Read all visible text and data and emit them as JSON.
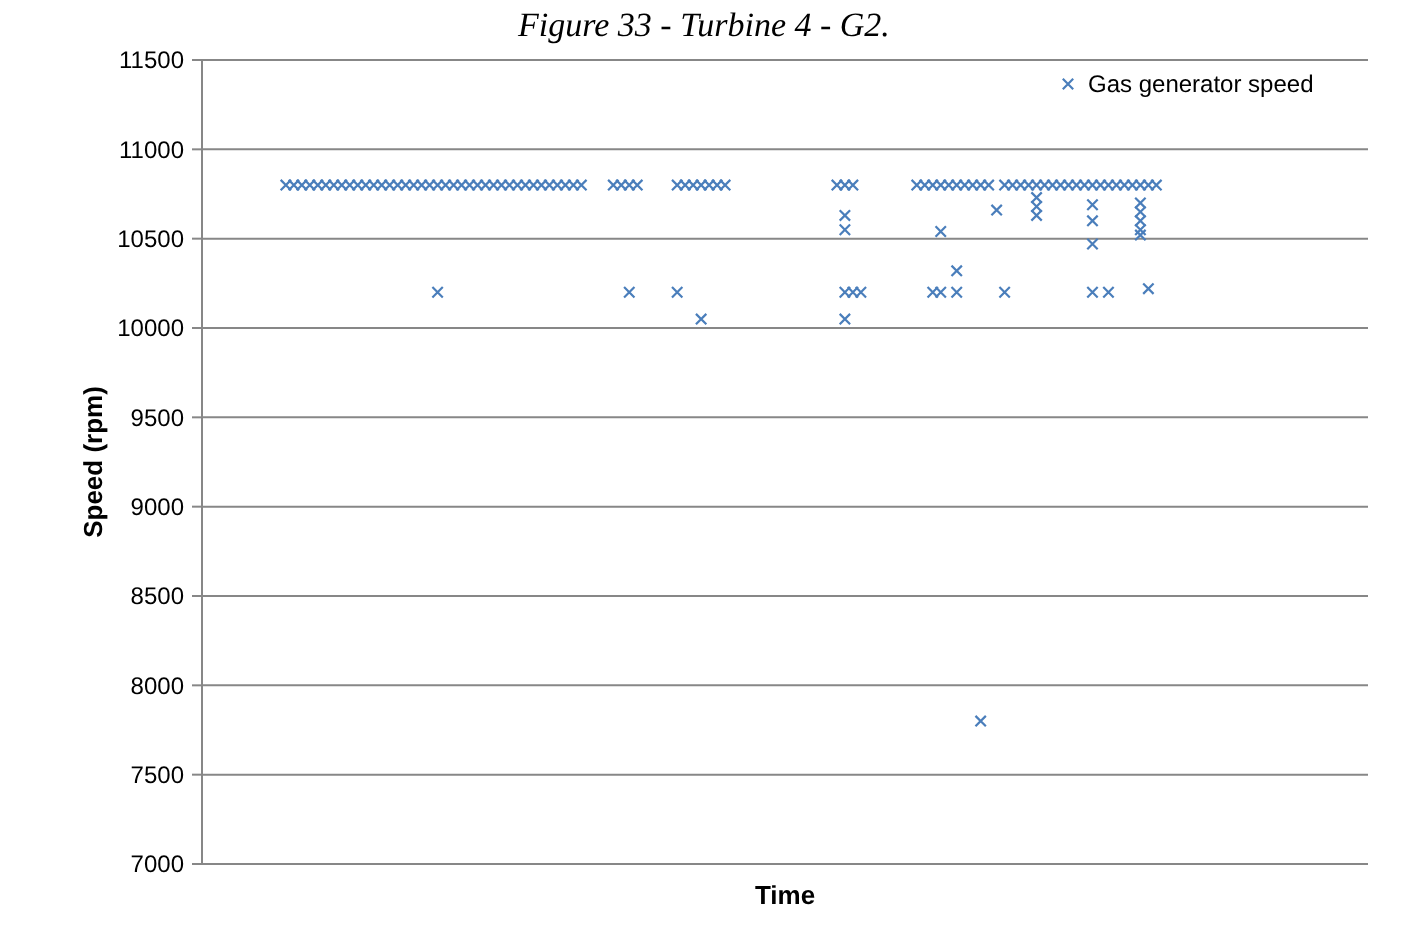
{
  "chart_data": {
    "type": "scatter",
    "title": "Figure 33 - Turbine 4 - G2.",
    "xlabel": "Time",
    "ylabel": "Speed (rpm)",
    "ylim": [
      7000,
      11500
    ],
    "yticks": [
      7000,
      7500,
      8000,
      8500,
      9000,
      9500,
      10000,
      10500,
      11000,
      11500
    ],
    "grid": "y",
    "legend": "top right",
    "tick_labels": "y",
    "marker": "cross",
    "categories": [
      null,
      null,
      null,
      null,
      null,
      null,
      null,
      null,
      null,
      null,
      null,
      null,
      null,
      null,
      null,
      null,
      null,
      null,
      null,
      null,
      null,
      null,
      null,
      null,
      null,
      null,
      null,
      null,
      null,
      null,
      null,
      null,
      null,
      null,
      null,
      null,
      null,
      null,
      null,
      null,
      null,
      null,
      null,
      null,
      null,
      null,
      null,
      null,
      null,
      null,
      null,
      null,
      null,
      null,
      null,
      null,
      null,
      null,
      null,
      null,
      null,
      null,
      null,
      null,
      null,
      null,
      null,
      null,
      null,
      null,
      null,
      null,
      null,
      null,
      null,
      null,
      null,
      null,
      null,
      null,
      null,
      null,
      null,
      null,
      null,
      null,
      null,
      null,
      null,
      null,
      null,
      null,
      null,
      null,
      null,
      null,
      null,
      null,
      null,
      null,
      null,
      null,
      null,
      null,
      null,
      null,
      null,
      null,
      null,
      null,
      null,
      null,
      null,
      null,
      null,
      null,
      null,
      null,
      null,
      null,
      null,
      null,
      null,
      null,
      null,
      null,
      null,
      null,
      null,
      null,
      null,
      null,
      null,
      null,
      null,
      null,
      null,
      null,
      null,
      null,
      null,
      null,
      null,
      null,
      null,
      null
    ],
    "series": [
      {
        "name": "Gas generator speed",
        "color": "#4a7ebb",
        "values": [
          null,
          null,
          null,
          null,
          null,
          null,
          null,
          null,
          null,
          null,
          10800,
          10800,
          10800,
          10800,
          10800,
          10800,
          10800,
          10800,
          10800,
          10800,
          10800,
          10800,
          10800,
          10800,
          10800,
          10800,
          10800,
          10800,
          10800,
          10800,
          10800,
          10800,
          10800,
          10800,
          10800,
          10800,
          10800,
          10800,
          10800,
          10800,
          10800,
          10800,
          10800,
          10800,
          10800,
          10800,
          10800,
          10800,
          null,
          null,
          null,
          10800,
          10800,
          10800,
          10800,
          null,
          null,
          null,
          null,
          10800,
          10800,
          10800,
          10800,
          10800,
          10800,
          10800,
          null,
          null,
          null,
          null,
          null,
          null,
          null,
          null,
          null,
          null,
          null,
          null,
          null,
          10800,
          10800,
          10800,
          null,
          null,
          null,
          null,
          null,
          null,
          null,
          10800,
          10800,
          10800,
          10800,
          10800,
          10800,
          10800,
          10800,
          10800,
          10800,
          null,
          10800,
          10800,
          10800,
          10800,
          10800,
          10800,
          10800,
          10800,
          10800,
          10800,
          10800,
          10800,
          10800,
          10800,
          10800,
          10800,
          10800,
          10800,
          10800,
          10800,
          null,
          null,
          null,
          null,
          null,
          null,
          null,
          null,
          null,
          null,
          null,
          null,
          null,
          null,
          null,
          null,
          null,
          null,
          null,
          null,
          null,
          null,
          null,
          null,
          null,
          null
        ]
      },
      {
        "color": "#4a7ebb",
        "values": [
          null,
          null,
          null,
          null,
          null,
          null,
          null,
          null,
          null,
          null,
          null,
          null,
          null,
          null,
          null,
          null,
          null,
          null,
          null,
          null,
          null,
          null,
          null,
          null,
          null,
          null,
          null,
          null,
          null,
          10200,
          null,
          null,
          null,
          null,
          null,
          null,
          null,
          null,
          null,
          null,
          null,
          null,
          null,
          null,
          null,
          null,
          null,
          null,
          null,
          null,
          null,
          null,
          null,
          10200,
          null,
          null,
          null,
          null,
          null,
          10200,
          null,
          null,
          10050,
          null,
          null,
          null,
          null,
          null,
          null,
          null,
          null,
          null,
          null,
          null,
          null,
          null,
          null,
          null,
          null,
          null,
          10630,
          10200,
          10200,
          null,
          null,
          null,
          null,
          null,
          null,
          null,
          null,
          10200,
          10540,
          null,
          10320,
          null,
          null,
          7800,
          null,
          10660,
          10200,
          null,
          null,
          null,
          10730,
          null,
          null,
          null,
          null,
          null,
          null,
          10690,
          null,
          10200,
          null,
          null,
          null,
          10700,
          10220,
          null,
          null,
          null,
          null,
          null,
          null,
          null,
          null,
          null,
          null,
          null,
          null,
          null,
          null,
          null,
          null,
          null,
          null,
          null,
          null,
          null,
          null,
          null,
          null,
          null,
          null,
          null
        ]
      },
      {
        "color": "#4a7ebb",
        "values": [
          null,
          null,
          null,
          null,
          null,
          null,
          null,
          null,
          null,
          null,
          null,
          null,
          null,
          null,
          null,
          null,
          null,
          null,
          null,
          null,
          null,
          null,
          null,
          null,
          null,
          null,
          null,
          null,
          null,
          null,
          null,
          null,
          null,
          null,
          null,
          null,
          null,
          null,
          null,
          null,
          null,
          null,
          null,
          null,
          null,
          null,
          null,
          null,
          null,
          null,
          null,
          null,
          null,
          null,
          null,
          null,
          null,
          null,
          null,
          null,
          null,
          null,
          null,
          null,
          null,
          null,
          null,
          null,
          null,
          null,
          null,
          null,
          null,
          null,
          null,
          null,
          null,
          null,
          null,
          null,
          10550,
          null,
          null,
          null,
          null,
          null,
          null,
          null,
          null,
          null,
          null,
          null,
          10200,
          null,
          10200,
          null,
          null,
          null,
          null,
          null,
          null,
          null,
          null,
          null,
          10680,
          null,
          null,
          null,
          null,
          null,
          null,
          10600,
          null,
          null,
          null,
          null,
          null,
          10650,
          null,
          null,
          null,
          null,
          null,
          null,
          null,
          null,
          null,
          null,
          null,
          null,
          null,
          null,
          null,
          null,
          null,
          null,
          null,
          null,
          null,
          null,
          null,
          null,
          null,
          null,
          null,
          null
        ]
      },
      {
        "color": "#4a7ebb",
        "values": [
          null,
          null,
          null,
          null,
          null,
          null,
          null,
          null,
          null,
          null,
          null,
          null,
          null,
          null,
          null,
          null,
          null,
          null,
          null,
          null,
          null,
          null,
          null,
          null,
          null,
          null,
          null,
          null,
          null,
          null,
          null,
          null,
          null,
          null,
          null,
          null,
          null,
          null,
          null,
          null,
          null,
          null,
          null,
          null,
          null,
          null,
          null,
          null,
          null,
          null,
          null,
          null,
          null,
          null,
          null,
          null,
          null,
          null,
          null,
          null,
          null,
          null,
          null,
          null,
          null,
          null,
          null,
          null,
          null,
          null,
          null,
          null,
          null,
          null,
          null,
          null,
          null,
          null,
          null,
          null,
          10200,
          null,
          null,
          null,
          null,
          null,
          null,
          null,
          null,
          null,
          null,
          null,
          null,
          null,
          null,
          null,
          null,
          null,
          null,
          null,
          null,
          null,
          null,
          null,
          10630,
          null,
          null,
          null,
          null,
          null,
          null,
          10470,
          null,
          null,
          null,
          null,
          null,
          10600,
          null,
          null,
          null,
          null,
          null,
          null,
          null,
          null,
          null,
          null,
          null,
          null,
          null,
          null,
          null,
          null,
          null,
          null,
          null,
          null,
          null,
          null,
          null,
          null,
          null,
          null,
          null,
          null
        ]
      },
      {
        "color": "#4a7ebb",
        "values": [
          null,
          null,
          null,
          null,
          null,
          null,
          null,
          null,
          null,
          null,
          null,
          null,
          null,
          null,
          null,
          null,
          null,
          null,
          null,
          null,
          null,
          null,
          null,
          null,
          null,
          null,
          null,
          null,
          null,
          null,
          null,
          null,
          null,
          null,
          null,
          null,
          null,
          null,
          null,
          null,
          null,
          null,
          null,
          null,
          null,
          null,
          null,
          null,
          null,
          null,
          null,
          null,
          null,
          null,
          null,
          null,
          null,
          null,
          null,
          null,
          null,
          null,
          null,
          null,
          null,
          null,
          null,
          null,
          null,
          null,
          null,
          null,
          null,
          null,
          null,
          null,
          null,
          null,
          null,
          null,
          10050,
          null,
          null,
          null,
          null,
          null,
          null,
          null,
          null,
          null,
          null,
          null,
          null,
          null,
          null,
          null,
          null,
          null,
          null,
          null,
          null,
          null,
          null,
          null,
          null,
          null,
          null,
          null,
          null,
          null,
          null,
          10200,
          null,
          null,
          null,
          null,
          null,
          10550,
          null,
          null,
          null,
          null,
          null,
          null,
          null,
          null,
          null,
          null,
          null,
          null,
          null,
          null,
          null,
          null,
          null,
          null,
          null,
          null,
          null,
          null,
          null,
          null,
          null,
          null,
          null,
          null
        ]
      },
      {
        "color": "#4a7ebb",
        "values": [
          null,
          null,
          null,
          null,
          null,
          null,
          null,
          null,
          null,
          null,
          null,
          null,
          null,
          null,
          null,
          null,
          null,
          null,
          null,
          null,
          null,
          null,
          null,
          null,
          null,
          null,
          null,
          null,
          null,
          null,
          null,
          null,
          null,
          null,
          null,
          null,
          null,
          null,
          null,
          null,
          null,
          null,
          null,
          null,
          null,
          null,
          null,
          null,
          null,
          null,
          null,
          null,
          null,
          null,
          null,
          null,
          null,
          null,
          null,
          null,
          null,
          null,
          null,
          null,
          null,
          null,
          null,
          null,
          null,
          null,
          null,
          null,
          null,
          null,
          null,
          null,
          null,
          null,
          null,
          null,
          null,
          null,
          null,
          null,
          null,
          null,
          null,
          null,
          null,
          null,
          null,
          null,
          null,
          null,
          null,
          null,
          null,
          null,
          null,
          null,
          null,
          null,
          null,
          null,
          null,
          null,
          null,
          null,
          null,
          null,
          null,
          null,
          null,
          null,
          null,
          null,
          null,
          10520,
          null,
          null,
          null,
          null,
          null,
          null,
          null,
          null,
          null,
          null,
          null,
          null,
          null,
          null,
          null,
          null,
          null,
          null,
          null,
          null,
          null,
          null,
          null,
          null,
          null,
          null,
          null,
          null
        ]
      }
    ]
  }
}
